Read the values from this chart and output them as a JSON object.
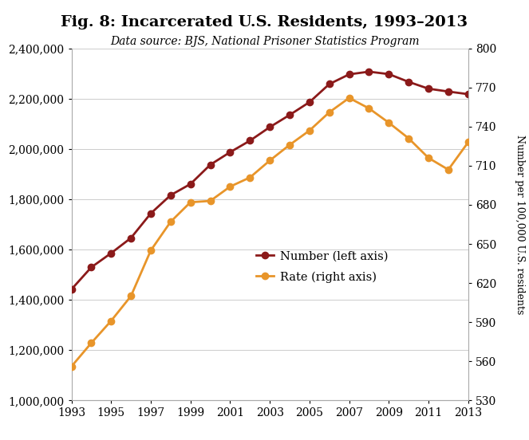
{
  "title": "Fig. 8: Incarcerated U.S. Residents, 1993–2013",
  "subtitle": "Data source: BJS, National Prisoner Statistics Program",
  "years": [
    1993,
    1994,
    1995,
    1996,
    1997,
    1998,
    1999,
    2000,
    2001,
    2002,
    2003,
    2004,
    2005,
    2006,
    2007,
    2008,
    2009,
    2010,
    2011,
    2012,
    2013
  ],
  "number": [
    1441553,
    1529280,
    1585586,
    1646020,
    1743643,
    1816177,
    1860520,
    1937282,
    1987291,
    2033022,
    2086900,
    2135335,
    2186230,
    2258099,
    2296800,
    2307504,
    2297736,
    2266832,
    2239751,
    2228424,
    2217947
  ],
  "rate": [
    556,
    574,
    591,
    610,
    645,
    667,
    682,
    683,
    694,
    701,
    714,
    726,
    737,
    751,
    762,
    754,
    743,
    731,
    716,
    707,
    728
  ],
  "number_color": "#8B1A1A",
  "rate_color": "#E8952A",
  "ylim_left": [
    1000000,
    2400000
  ],
  "ylim_right": [
    530,
    800
  ],
  "yticks_left": [
    1000000,
    1200000,
    1400000,
    1600000,
    1800000,
    2000000,
    2200000,
    2400000
  ],
  "yticks_right": [
    530,
    560,
    590,
    620,
    650,
    680,
    710,
    740,
    770,
    800
  ],
  "ylabel_right": "Number per 100,000 U.S. residents",
  "legend_number": "Number (left axis)",
  "legend_rate": "Rate (right axis)",
  "title_fontsize": 14,
  "subtitle_fontsize": 10,
  "background_color": "#ffffff",
  "marker_size": 6
}
